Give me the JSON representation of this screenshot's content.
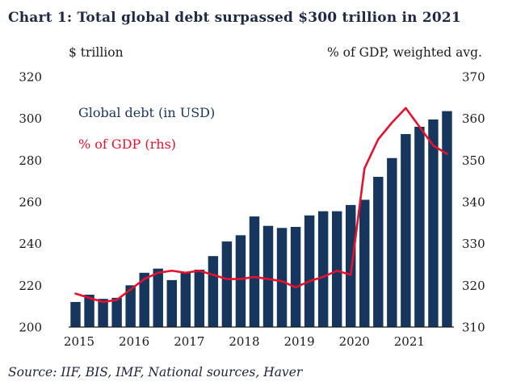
{
  "title": "Chart 1: Total global debt surpassed $300 trillion in 2021",
  "left_axis_title": "$ trillion",
  "right_axis_title": "% of GDP, weighted avg.",
  "source": "Source: IIF, BIS, IMF, National sources, Haver",
  "legend": [
    {
      "label": "Global debt (in USD)",
      "color": "#17365d"
    },
    {
      "label": "% of GDP (rhs)",
      "color": "#e8112d"
    }
  ],
  "chart_data": {
    "type": "bar",
    "title": "Chart 1: Total global debt surpassed $300 trillion in 2021",
    "x_labels": [
      "2015",
      "2016",
      "2017",
      "2018",
      "2019",
      "2020",
      "2021"
    ],
    "frequency": "quarterly",
    "grid": false,
    "legend_position": "inside-top-left",
    "left_axis": {
      "label": "$ trillion",
      "min": 200,
      "max": 320,
      "ticks": [
        200,
        220,
        240,
        260,
        280,
        300,
        320
      ]
    },
    "right_axis": {
      "label": "% of GDP, weighted avg.",
      "min": 310,
      "max": 370,
      "ticks": [
        310,
        320,
        330,
        340,
        350,
        360,
        370
      ]
    },
    "series": [
      {
        "name": "Global debt (in USD)",
        "type": "bar",
        "axis": "left",
        "color": "#17365d",
        "values": [
          212,
          215.5,
          213.5,
          214,
          220,
          226,
          228,
          222.5,
          226.5,
          227.5,
          234,
          241,
          244,
          253,
          248.5,
          247.5,
          248,
          253.5,
          255.5,
          255.5,
          258.5,
          261,
          272,
          281,
          292.5,
          296,
          299.5,
          303.5
        ]
      },
      {
        "name": "% of GDP (rhs)",
        "type": "line",
        "axis": "right",
        "color": "#e8112d",
        "values": [
          318,
          317,
          316,
          316.5,
          319,
          321.5,
          323,
          323.5,
          323,
          323.5,
          322.5,
          321.5,
          321.5,
          322,
          321.5,
          321,
          319.5,
          321,
          322,
          323.5,
          322.5,
          348,
          355,
          359,
          362.5,
          358,
          353.5,
          351.5
        ]
      }
    ]
  }
}
